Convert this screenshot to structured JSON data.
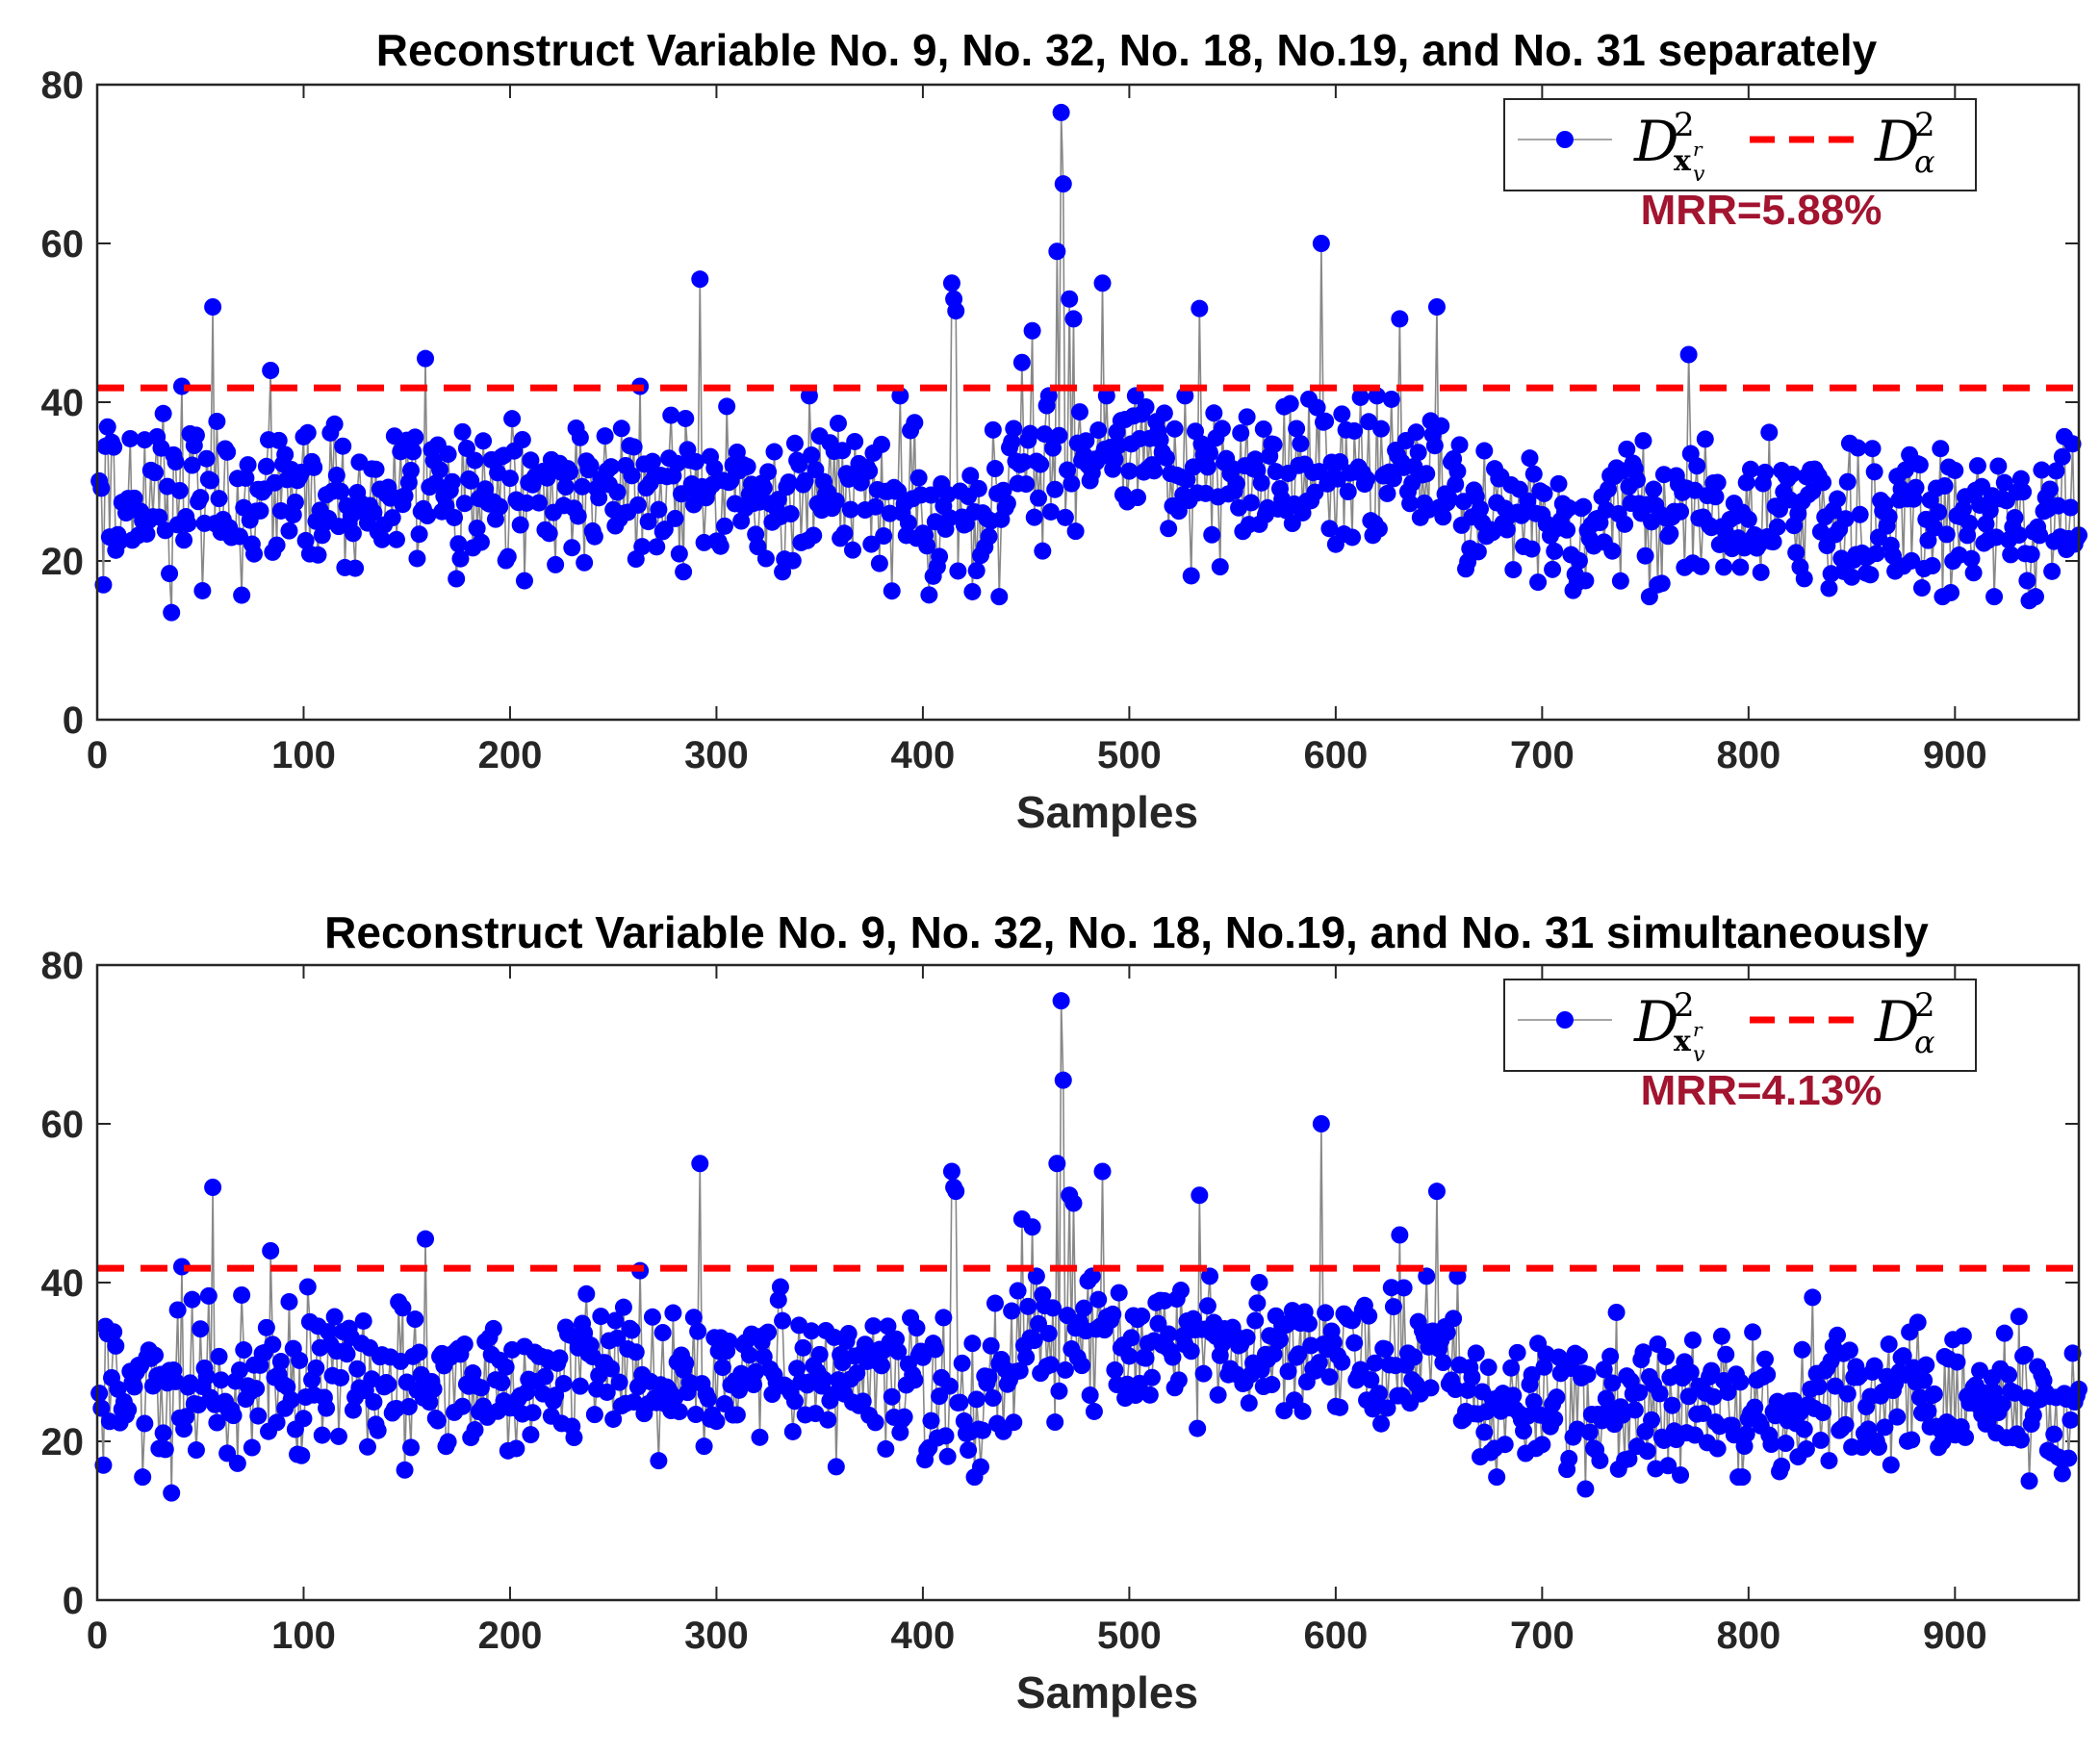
{
  "colors": {
    "series": "#0000ff",
    "line": "#888888",
    "threshold": "#ff0000",
    "mrr": "#a2142f",
    "axis": "#262626"
  },
  "chart_data": [
    {
      "type": "line",
      "title": "Reconstruct Variable No. 9, No. 32, No. 18, No.19, and No. 31 separately",
      "xlabel": "Samples",
      "ylabel": "",
      "xlim": [
        0,
        960
      ],
      "ylim": [
        0,
        80
      ],
      "xticks": [
        "0",
        "100",
        "200",
        "300",
        "400",
        "500",
        "600",
        "700",
        "800",
        "900"
      ],
      "yticks": [
        "0",
        "20",
        "40",
        "60",
        "80"
      ],
      "threshold": 41.8,
      "annotation": "MRR=5.88%",
      "legend": {
        "position": "top-right",
        "series_symbol": "D",
        "series_sup": "2",
        "series_sub": "x",
        "series_sub2": "v",
        "series_sub_sup": "r",
        "threshold_symbol": "D",
        "threshold_sup": "2",
        "threshold_sub": "α"
      },
      "series": [
        {
          "name": "D²_x_v^r",
          "seed": 12345,
          "n": 960,
          "peaks": [
            [
              2,
              17
            ],
            [
              35,
              13.5
            ],
            [
              40,
              42
            ],
            [
              55,
              52
            ],
            [
              83,
              44
            ],
            [
              158,
              45.5
            ],
            [
              262,
              42
            ],
            [
              291,
              55.5
            ],
            [
              413,
              55
            ],
            [
              414,
              53
            ],
            [
              415,
              51.5
            ],
            [
              447,
              45
            ],
            [
              452,
              49
            ],
            [
              464,
              59
            ],
            [
              466,
              76.5
            ],
            [
              467,
              67.5
            ],
            [
              470,
              53
            ],
            [
              472,
              50.5
            ],
            [
              486,
              55
            ],
            [
              533,
              51.8
            ],
            [
              592,
              60
            ],
            [
              630,
              50.5
            ],
            [
              648,
              52
            ],
            [
              770,
              46
            ],
            [
              935,
              15
            ]
          ]
        }
      ]
    },
    {
      "type": "line",
      "title": "Reconstruct Variable No. 9, No. 32, No. 18, No.19, and No. 31 simultaneously",
      "xlabel": "Samples",
      "ylabel": "",
      "xlim": [
        0,
        960
      ],
      "ylim": [
        0,
        80
      ],
      "xticks": [
        "0",
        "100",
        "200",
        "300",
        "400",
        "500",
        "600",
        "700",
        "800",
        "900"
      ],
      "yticks": [
        "0",
        "20",
        "40",
        "60",
        "80"
      ],
      "threshold": 41.8,
      "annotation": "MRR=4.13%",
      "legend": {
        "position": "top-right",
        "series_symbol": "D",
        "series_sup": "2",
        "series_sub": "x",
        "series_sub2": "v",
        "series_sub_sup": "r",
        "threshold_symbol": "D",
        "threshold_sup": "2",
        "threshold_sub": "α"
      },
      "series": [
        {
          "name": "D²_x_v^r",
          "seed": 67890,
          "n": 960,
          "peaks": [
            [
              2,
              17
            ],
            [
              35,
              13.5
            ],
            [
              40,
              42
            ],
            [
              55,
              52
            ],
            [
              83,
              44
            ],
            [
              158,
              45.5
            ],
            [
              262,
              41.5
            ],
            [
              291,
              55
            ],
            [
              413,
              54
            ],
            [
              414,
              52
            ],
            [
              415,
              51.5
            ],
            [
              447,
              48
            ],
            [
              452,
              47
            ],
            [
              464,
              55
            ],
            [
              466,
              75.5
            ],
            [
              467,
              65.5
            ],
            [
              470,
              51
            ],
            [
              472,
              50
            ],
            [
              486,
              54
            ],
            [
              533,
              51
            ],
            [
              592,
              60
            ],
            [
              630,
              46
            ],
            [
              648,
              51.5
            ],
            [
              720,
              14
            ],
            [
              935,
              15
            ]
          ]
        }
      ]
    }
  ]
}
